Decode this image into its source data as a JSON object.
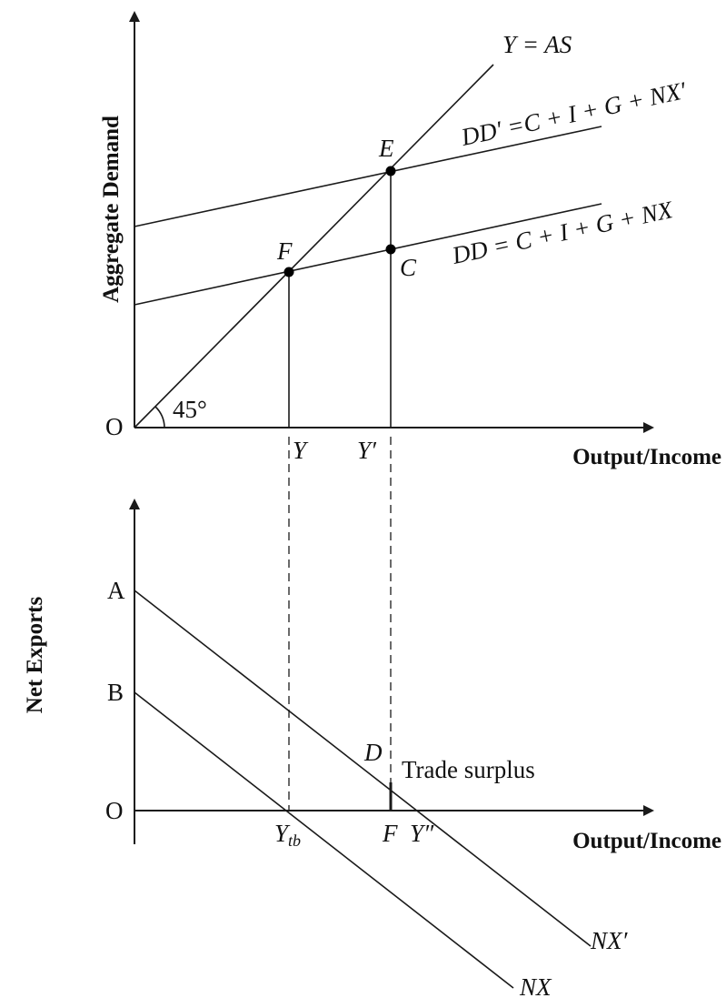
{
  "top": {
    "y_axis_label": "Aggregate Demand",
    "x_axis_label": "Output/Income",
    "origin_label": "O",
    "angle_label": "45°",
    "lines": {
      "as_label": "Y = AS",
      "dd_prime_label": "DD′ =C + I + G + NX′",
      "dd_label": "DD = C + I + G + NX"
    },
    "points": {
      "E": "E",
      "F": "F",
      "C": "C"
    },
    "ticks": {
      "y": "Y",
      "y_prime": "Y′"
    }
  },
  "bottom": {
    "y_axis_label": "Net Exports",
    "x_axis_label": "Output/Income",
    "origin_label": "O",
    "intercepts": {
      "A": "A",
      "B": "B"
    },
    "point_D": "D",
    "trade_surplus": "Trade surplus",
    "ticks": {
      "y_tb": "Y",
      "y_tb_sub": "tb",
      "F": "F",
      "y_double_prime": "Y″"
    },
    "curve_labels": {
      "nx_prime": "NX′",
      "nx": "NX"
    }
  },
  "colors": {
    "ink": "#1a1a1a",
    "background": "#ffffff"
  }
}
